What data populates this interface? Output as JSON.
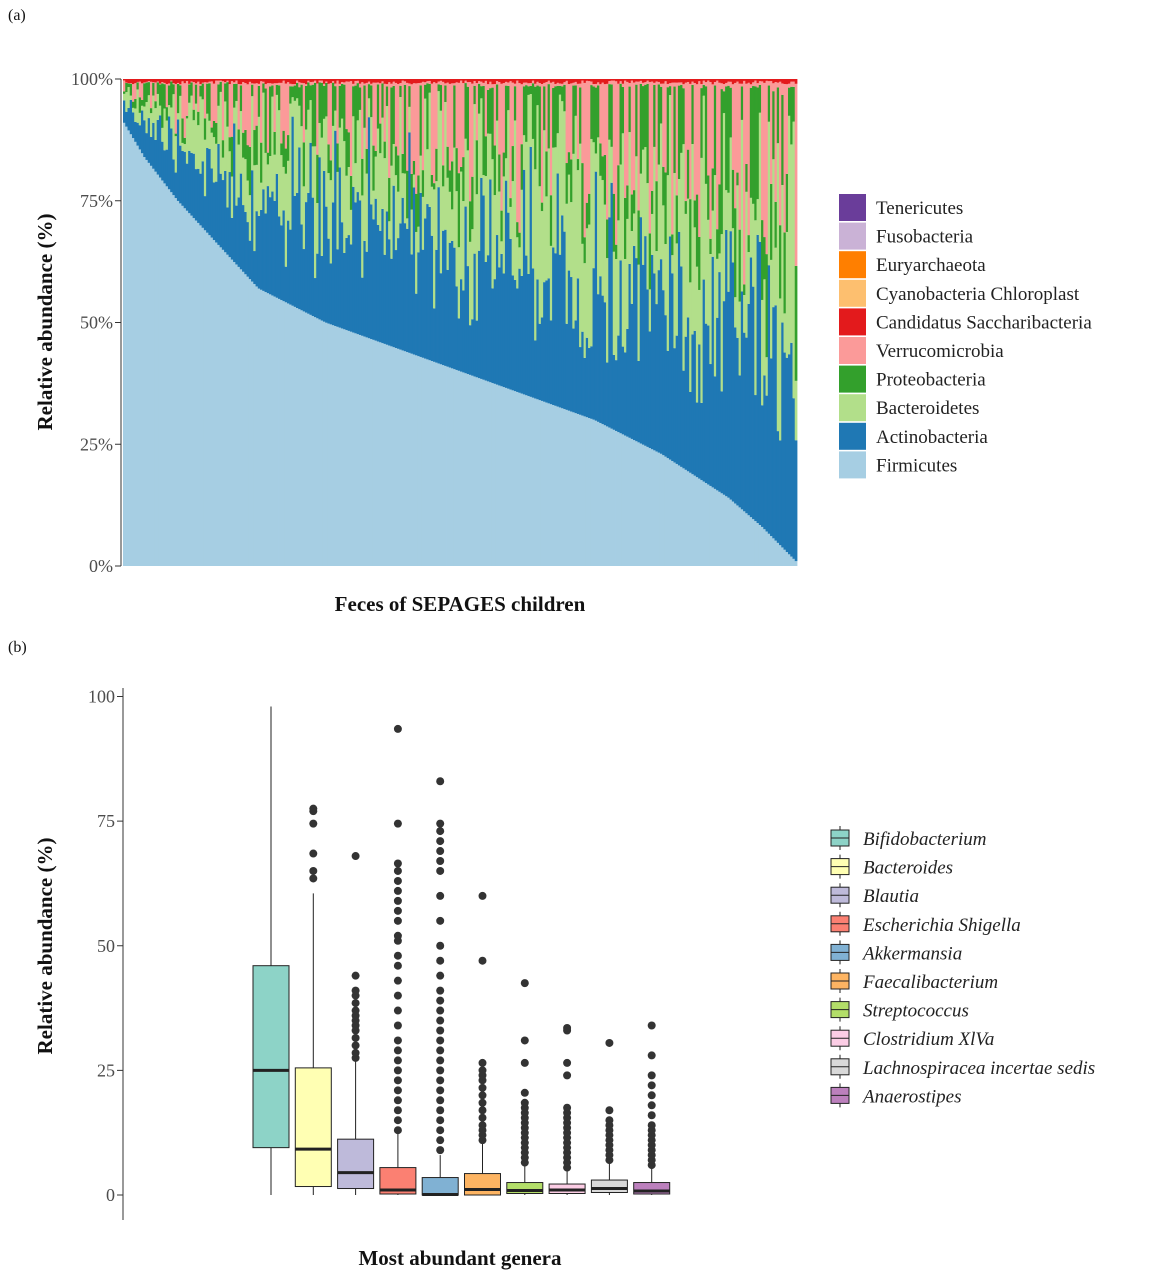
{
  "panel_a": {
    "tag": "(a)",
    "chart_data": {
      "type": "bar",
      "stacked": true,
      "title": "",
      "xlabel": "Feces of SEPAGES children",
      "ylabel": "Relative abundance (%)",
      "ylim": [
        0,
        100
      ],
      "yticks": [
        "0%",
        "25%",
        "50%",
        "75%",
        "100%"
      ],
      "ytick_values": [
        0,
        25,
        50,
        75,
        100
      ],
      "n_samples": 300,
      "legend_position": "right",
      "legend": [
        "Tenericutes",
        "Fusobacteria",
        "Euryarchaeota",
        "Cyanobacteria Chloroplast",
        "Candidatus Saccharibacteria",
        "Verrucomicrobia",
        "Proteobacteria",
        "Bacteroidetes",
        "Actinobacteria",
        "Firmicutes"
      ],
      "colors": {
        "Tenericutes": "#6a3d9a",
        "Fusobacteria": "#cab2d6",
        "Euryarchaeota": "#ff7f00",
        "Cyanobacteria Chloroplast": "#fdbf6f",
        "Candidatus Saccharibacteria": "#e31a1c",
        "Verrucomicrobia": "#fb9a99",
        "Proteobacteria": "#33a02c",
        "Bacteroidetes": "#b2df8a",
        "Actinobacteria": "#1f78b4",
        "Firmicutes": "#a6cee3"
      },
      "firmicutes_profile": [
        [
          0,
          91
        ],
        [
          0.03,
          84
        ],
        [
          0.08,
          75
        ],
        [
          0.2,
          57
        ],
        [
          0.3,
          50
        ],
        [
          0.5,
          40
        ],
        [
          0.7,
          30
        ],
        [
          0.8,
          23
        ],
        [
          0.9,
          14
        ],
        [
          0.95,
          8
        ],
        [
          1,
          1
        ]
      ],
      "approx_mean_composition": {
        "Firmicutes": 40,
        "Actinobacteria": 27,
        "Bacteroidetes": 16,
        "Proteobacteria": 8,
        "Verrucomicrobia": 8,
        "Other": 1
      }
    }
  },
  "panel_b": {
    "tag": "(b)",
    "chart_data": {
      "type": "box",
      "title": "",
      "xlabel": "Most abundant genera",
      "ylabel": "Relative abundance (%)",
      "ylim": [
        0,
        100
      ],
      "yticks": [
        "0",
        "25",
        "50",
        "75",
        "100"
      ],
      "ytick_values": [
        0,
        25,
        50,
        75,
        100
      ],
      "legend_position": "right",
      "series": [
        {
          "name": "Bifidobacterium",
          "color": "#8dd3c7",
          "min": 0,
          "q1": 9.5,
          "median": 25,
          "q3": 46,
          "max": 98,
          "outliers": []
        },
        {
          "name": "Bacteroides",
          "color": "#ffffb3",
          "min": 0,
          "q1": 1.7,
          "median": 9.2,
          "q3": 25.5,
          "max": 60.5,
          "outliers": [
            63.5,
            65,
            68.5,
            74.5,
            77,
            77.5
          ]
        },
        {
          "name": "Blautia",
          "color": "#bebada",
          "min": 0,
          "q1": 1.3,
          "median": 4.5,
          "q3": 11.2,
          "max": 27,
          "outliers": [
            27.5,
            28.5,
            30,
            31.5,
            33,
            34,
            35,
            36,
            37,
            38.5,
            40,
            41,
            44,
            68
          ]
        },
        {
          "name": "Escherichia Shigella",
          "color": "#fb8072",
          "min": 0,
          "q1": 0.2,
          "median": 1,
          "q3": 5.5,
          "max": 12.5,
          "outliers": [
            13,
            15,
            17,
            19,
            21,
            23,
            25,
            27,
            29,
            31,
            34,
            37,
            40,
            43,
            46,
            48,
            51,
            52,
            55,
            57,
            59,
            61,
            63,
            65,
            66.5,
            74.5,
            93.5
          ]
        },
        {
          "name": "Akkermansia",
          "color": "#80b1d3",
          "min": 0,
          "q1": 0,
          "median": 0.1,
          "q3": 3.5,
          "max": 8,
          "outliers": [
            9,
            11,
            13,
            15,
            17,
            19,
            21,
            23,
            25,
            27,
            29,
            31,
            33,
            35,
            37,
            39,
            41,
            44,
            47,
            50,
            55,
            60,
            65,
            67,
            69,
            71,
            73,
            74.5,
            83
          ]
        },
        {
          "name": "Faecalibacterium",
          "color": "#fdb462",
          "min": 0,
          "q1": 0,
          "median": 1.1,
          "q3": 4.3,
          "max": 10.5,
          "outliers": [
            11,
            12,
            13,
            14,
            15.5,
            17,
            18.5,
            20,
            21.5,
            23,
            24,
            25,
            26.5,
            47,
            60
          ]
        },
        {
          "name": "Streptococcus",
          "color": "#b3de69",
          "min": 0,
          "q1": 0.3,
          "median": 0.9,
          "q3": 2.5,
          "max": 6,
          "outliers": [
            6.5,
            7.5,
            8.5,
            9.5,
            10.5,
            11.5,
            12.5,
            13.5,
            14.5,
            15.5,
            16.5,
            17.5,
            18.5,
            20.5,
            26.5,
            31,
            42.5
          ]
        },
        {
          "name": "Clostridium XlVa",
          "color": "#fccde5",
          "min": 0,
          "q1": 0.3,
          "median": 1,
          "q3": 2.2,
          "max": 5,
          "outliers": [
            5.5,
            6.5,
            7.5,
            8.5,
            9.5,
            10.5,
            11.5,
            12.5,
            13.5,
            14.5,
            15.5,
            16.5,
            17.5,
            24,
            26.5,
            33,
            33.5
          ]
        },
        {
          "name": "Lachnospiracea incertae sedis",
          "color": "#d9d9d9",
          "min": 0,
          "q1": 0.5,
          "median": 1.3,
          "q3": 3,
          "max": 6.5,
          "outliers": [
            7,
            8,
            9,
            10,
            11,
            12,
            13,
            14,
            15,
            17,
            30.5
          ]
        },
        {
          "name": "Anaerostipes",
          "color": "#bc80bd",
          "min": 0,
          "q1": 0.2,
          "median": 0.8,
          "q3": 2.5,
          "max": 5.5,
          "outliers": [
            6,
            7,
            8,
            9,
            10,
            11,
            12,
            13,
            14,
            16,
            18,
            20,
            22,
            24,
            28,
            34
          ]
        }
      ]
    }
  }
}
